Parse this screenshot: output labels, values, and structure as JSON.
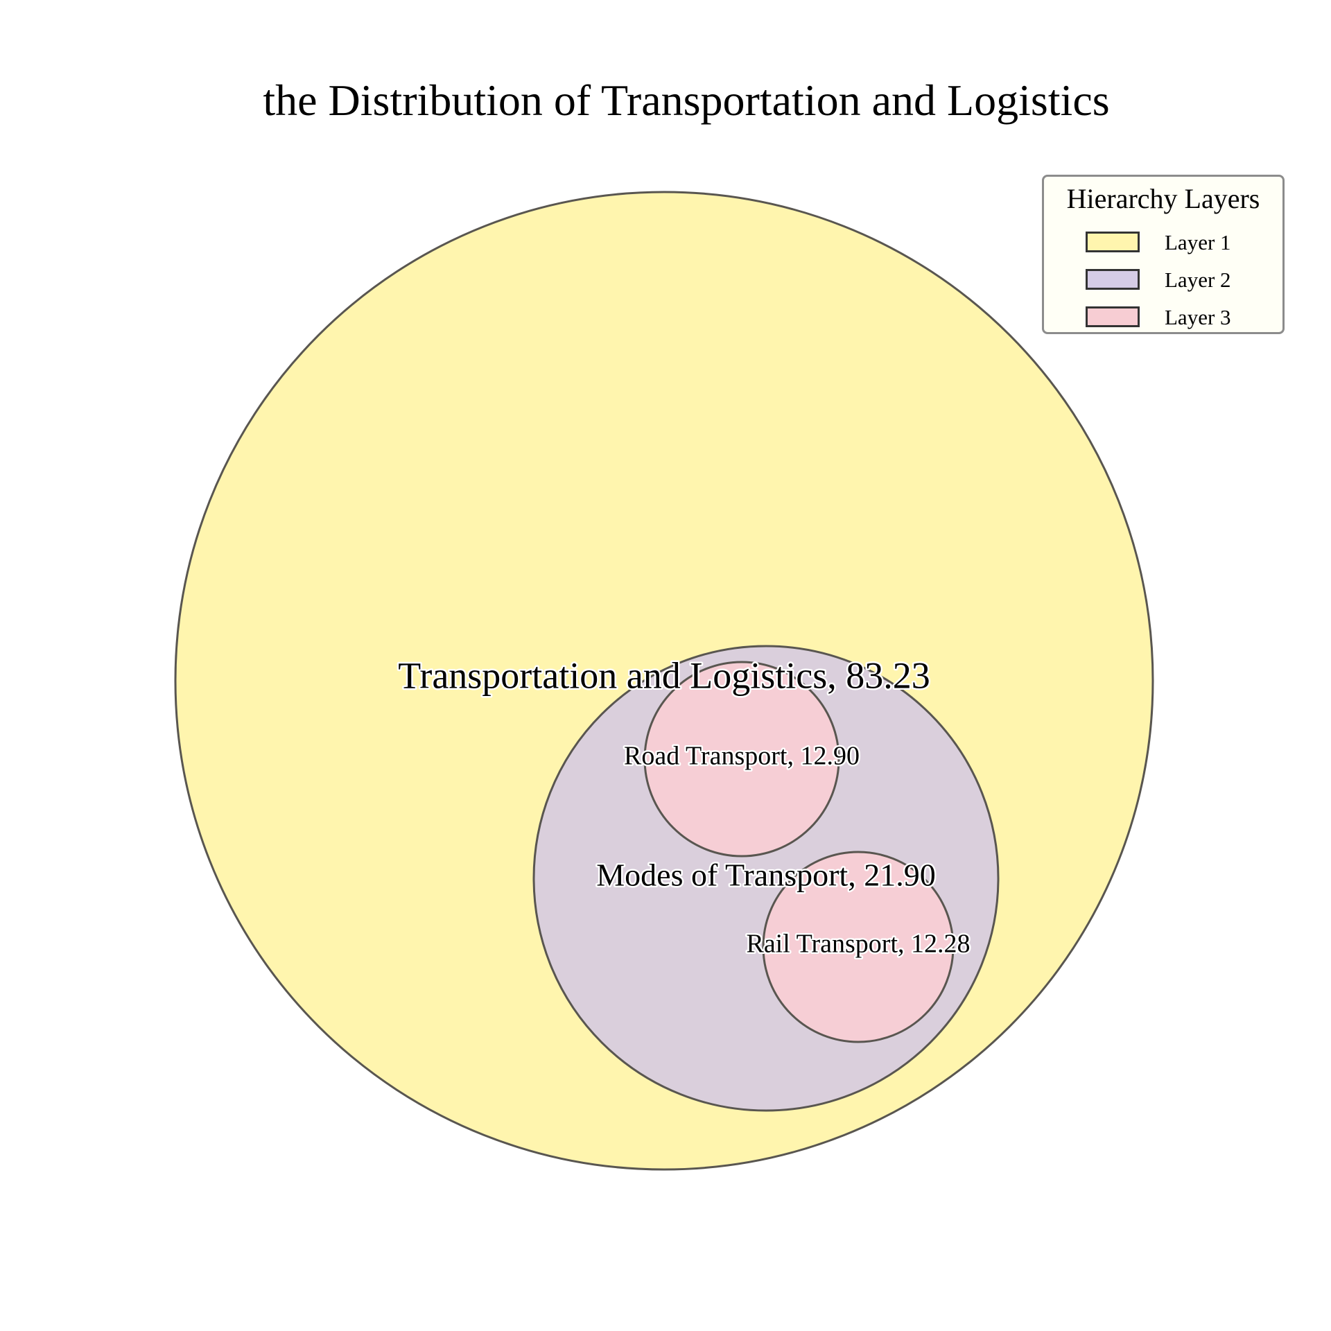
{
  "chart_data": {
    "type": "circle-packing",
    "title": "the Distribution of Transportation and Logistics",
    "nodes": [
      {
        "name": "Transportation and Logistics",
        "value": 83.23,
        "layer": 1,
        "label": "Transportation and Logistics, 83.23"
      },
      {
        "name": "Modes of Transport",
        "value": 21.9,
        "layer": 2,
        "parent": "Transportation and Logistics",
        "label": "Modes of Transport, 21.90"
      },
      {
        "name": "Road Transport",
        "value": 12.9,
        "layer": 3,
        "parent": "Modes of Transport",
        "label": "Road Transport, 12.90"
      },
      {
        "name": "Rail Transport",
        "value": 12.28,
        "layer": 3,
        "parent": "Modes of Transport",
        "label": "Rail Transport, 12.28"
      }
    ],
    "legend": {
      "title": "Hierarchy Layers",
      "placement": "top-right",
      "items": [
        {
          "label": "Layer 1",
          "color": "#fff5ae"
        },
        {
          "label": "Layer 2",
          "color": "#d5cce6"
        },
        {
          "label": "Layer 3",
          "color": "#f7cdd3"
        }
      ]
    },
    "colors": {
      "layer1": "#fff5ae",
      "layer2": "#dacfdc",
      "layer3": "#f6ced5",
      "outline": "#595650"
    }
  }
}
